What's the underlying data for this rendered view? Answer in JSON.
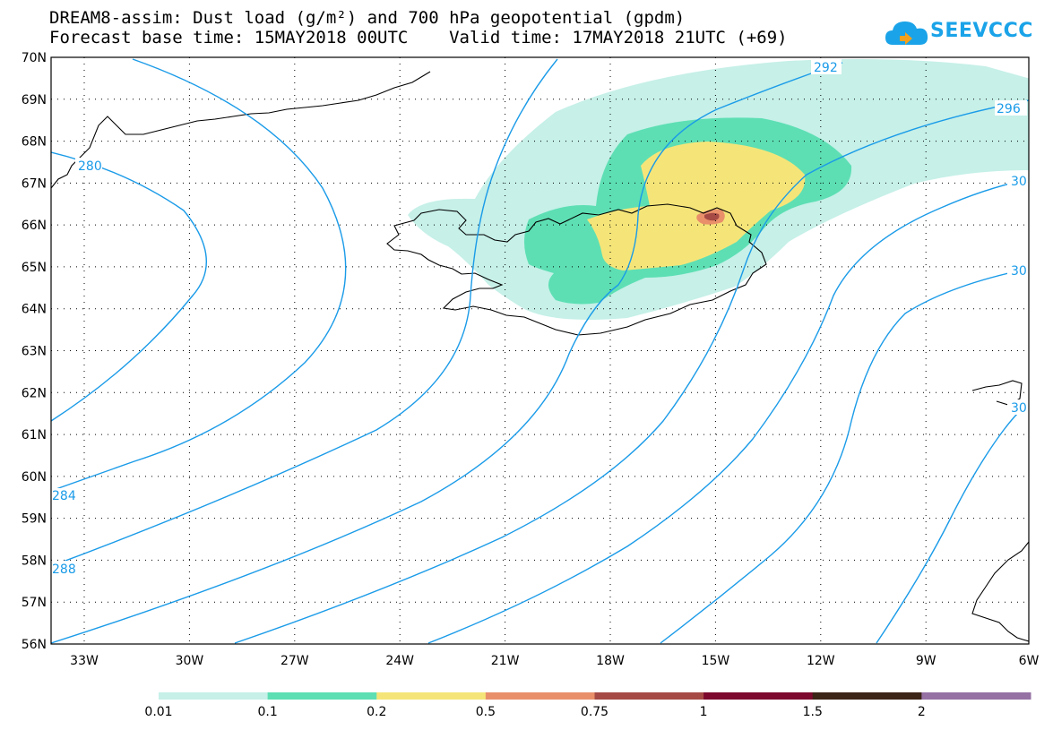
{
  "header": {
    "title_line1": "DREAM8-assim: Dust load (g/m²) and 700 hPa geopotential (gpdm)",
    "title_line2": "Forecast base time: 15MAY2018 00UTC    Valid time: 17MAY2018 21UTC (+69)",
    "logo_text": "SEEVCCC",
    "logo_icon": "cloud-icon"
  },
  "map": {
    "lat_labels": [
      "70N",
      "69N",
      "68N",
      "67N",
      "66N",
      "65N",
      "64N",
      "63N",
      "62N",
      "61N",
      "60N",
      "59N",
      "58N",
      "57N",
      "56N"
    ],
    "lon_labels": [
      "33W",
      "30W",
      "27W",
      "24W",
      "21W",
      "18W",
      "15W",
      "12W",
      "9W",
      "6W"
    ],
    "lat_range": [
      56,
      70
    ],
    "lon_range": [
      -34.0,
      -6.0
    ],
    "grid": "dotted",
    "contour_color": "#1a9be8",
    "contour_labels": [
      "280",
      "284",
      "288",
      "292",
      "296",
      "30",
      "30",
      "30"
    ],
    "dust_colors": {
      "0.01": "#c6f0e8",
      "0.1": "#5ddfb3",
      "0.2": "#f5e579",
      "0.5": "#e9906a",
      "0.75": "#a64a45"
    }
  },
  "colorbar": {
    "labels": [
      "0.01",
      "0.1",
      "0.2",
      "0.5",
      "0.75",
      "1",
      "1.5",
      "2"
    ],
    "colors": [
      "#c6f0e8",
      "#5ddfb3",
      "#f5e579",
      "#e9906a",
      "#a64a45",
      "#7d0a2e",
      "#3c2416",
      "#9571a4"
    ]
  }
}
